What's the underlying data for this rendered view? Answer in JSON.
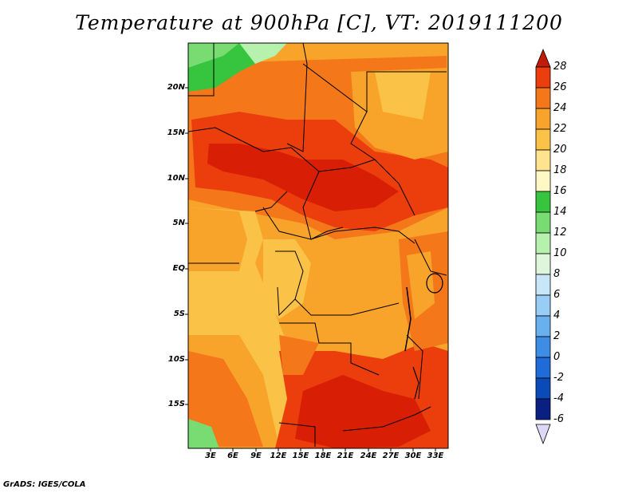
{
  "title": "Temperature at 900hPa [C], VT: 2019111200",
  "footer": "GrADS: IGES/COLA",
  "map": {
    "lat_labels": [
      "20N",
      "15N",
      "10N",
      "5N",
      "EQ",
      "5S",
      "10S",
      "15S"
    ],
    "lon_labels": [
      "3E",
      "6E",
      "9E",
      "12E",
      "15E",
      "18E",
      "21E",
      "24E",
      "27E",
      "30E",
      "33E"
    ],
    "colors": {
      "hot_28": "#d81f06",
      "hot_26": "#ec3d0c",
      "t24": "#f4771a",
      "t22": "#f8a42a",
      "t20": "#fbc248",
      "t18": "#ffe38e",
      "t16": "#fff8c4",
      "t14": "#37c43f",
      "t12": "#79dc73",
      "t10": "#b6f1ad"
    }
  },
  "colorbar": {
    "labels": [
      "28",
      "26",
      "24",
      "22",
      "20",
      "18",
      "16",
      "14",
      "12",
      "10",
      "8",
      "6",
      "4",
      "2",
      "0",
      "-2",
      "-4",
      "-6"
    ],
    "colors": [
      "#d81f06",
      "#ec3d0c",
      "#f4771a",
      "#f8a42a",
      "#fbc248",
      "#ffe38e",
      "#fff8c4",
      "#37c43f",
      "#79dc73",
      "#b6f1ad",
      "#dff6dc",
      "#c8e6fa",
      "#98cdf5",
      "#68b1ee",
      "#3e8de4",
      "#1f6cd8",
      "#0a4bb8",
      "#0a1f82"
    ],
    "top_arrow_color": "#c21c08",
    "bottom_arrow_color": "#dcd8f5"
  }
}
